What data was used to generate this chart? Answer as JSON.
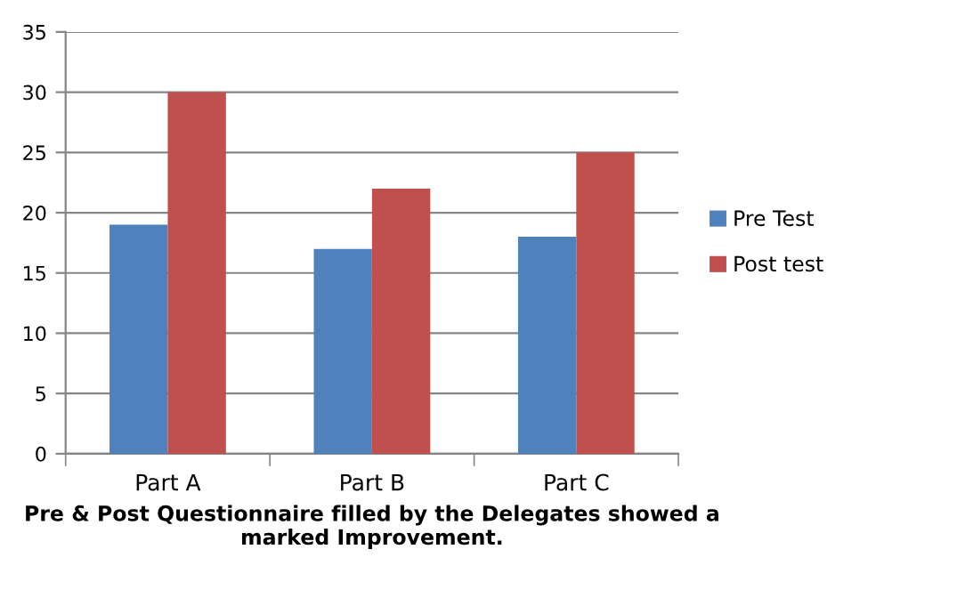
{
  "chart_data": {
    "type": "bar",
    "xlabel": "Pre & Post Questionnaire filled by the Delegates showed a\nmarked Improvement.",
    "categories": [
      "Part A",
      "Part B",
      "Part C"
    ],
    "series": [
      {
        "name": "Pre Test",
        "color": "#4f81bd",
        "values": [
          19,
          17,
          18
        ]
      },
      {
        "name": "Post test",
        "color": "#c0504d",
        "values": [
          30,
          22,
          25
        ]
      }
    ],
    "ylim": [
      0,
      35
    ],
    "yticks": [
      0,
      5,
      10,
      15,
      20,
      25,
      30,
      35
    ],
    "grid": "y",
    "legend": "right"
  }
}
